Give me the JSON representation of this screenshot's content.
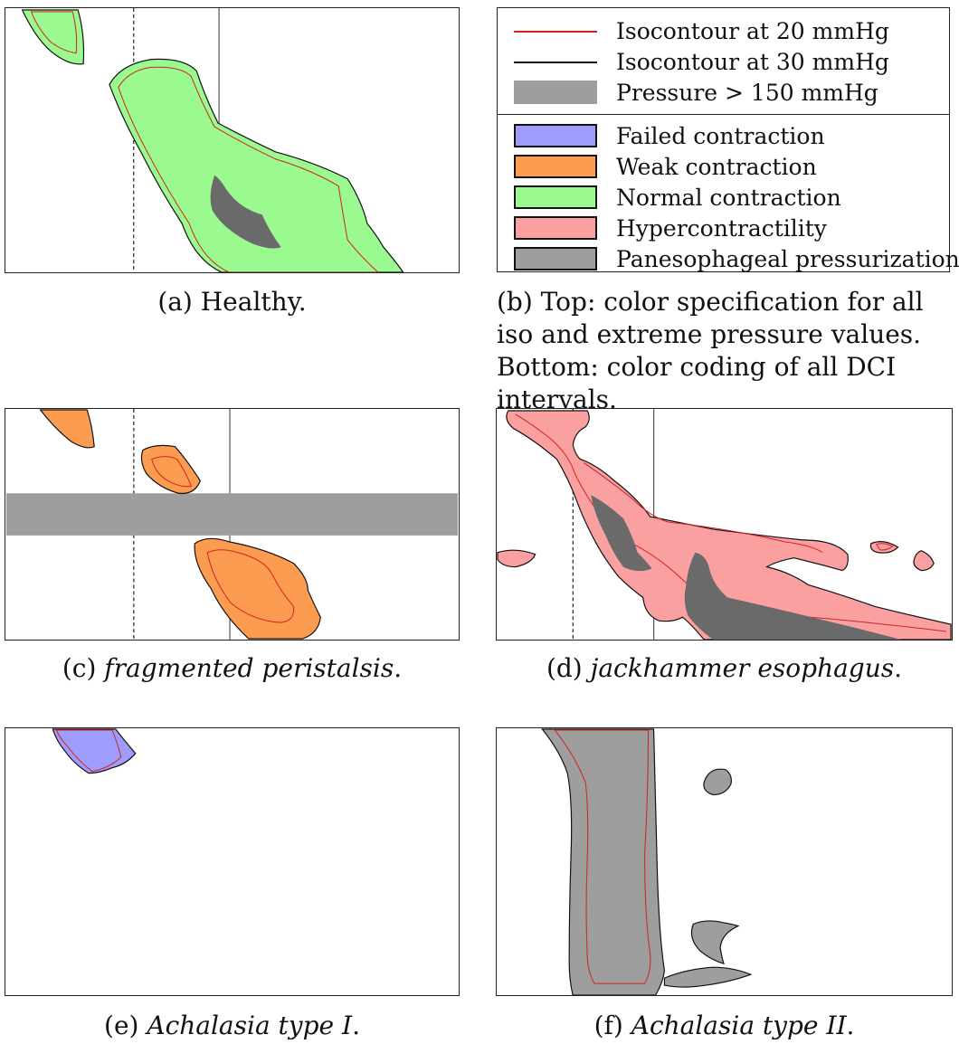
{
  "colors": {
    "iso20": "#d42020",
    "iso30": "#111111",
    "pressure150": "#9e9e9e",
    "failed": "#9d9dfc",
    "weak": "#fc9c51",
    "normal": "#9afa90",
    "hyper": "#fba0a0",
    "panesophageal": "#9e9e9e",
    "dark": "#6a6a6a"
  },
  "legend": {
    "iso": [
      {
        "label": "Isocontour at 20 mmHg",
        "color": "#d42020"
      },
      {
        "label": "Isocontour at 30 mmHg",
        "color": "#111111"
      },
      {
        "label": "Pressure > 150 mmHg",
        "color": "#9e9e9e"
      }
    ],
    "dci": [
      {
        "label": "Failed contraction",
        "color": "#9d9dfc"
      },
      {
        "label": "Weak contraction",
        "color": "#fc9c51"
      },
      {
        "label": "Normal contraction",
        "color": "#9afa90"
      },
      {
        "label": "Hypercontractility",
        "color": "#fba0a0"
      },
      {
        "label": "Panesophageal pressurization",
        "color": "#9e9e9e"
      }
    ]
  },
  "captions": {
    "a": {
      "label": "(a)",
      "text": "Healthy."
    },
    "b": {
      "text": "(b) Top: color specification for all iso and extreme pressure values. Bottom: color coding of all DCI intervals."
    },
    "c": {
      "label": "(c)",
      "text": "fragmented peristalsis",
      "end": "."
    },
    "d": {
      "label": "(d)",
      "text": "jackhammer esophagus",
      "end": "."
    },
    "e": {
      "label": "(e)",
      "text": "Achalasia type I",
      "end": "."
    },
    "f": {
      "label": "(f)",
      "text": "Achalasia type II",
      "end": "."
    }
  }
}
